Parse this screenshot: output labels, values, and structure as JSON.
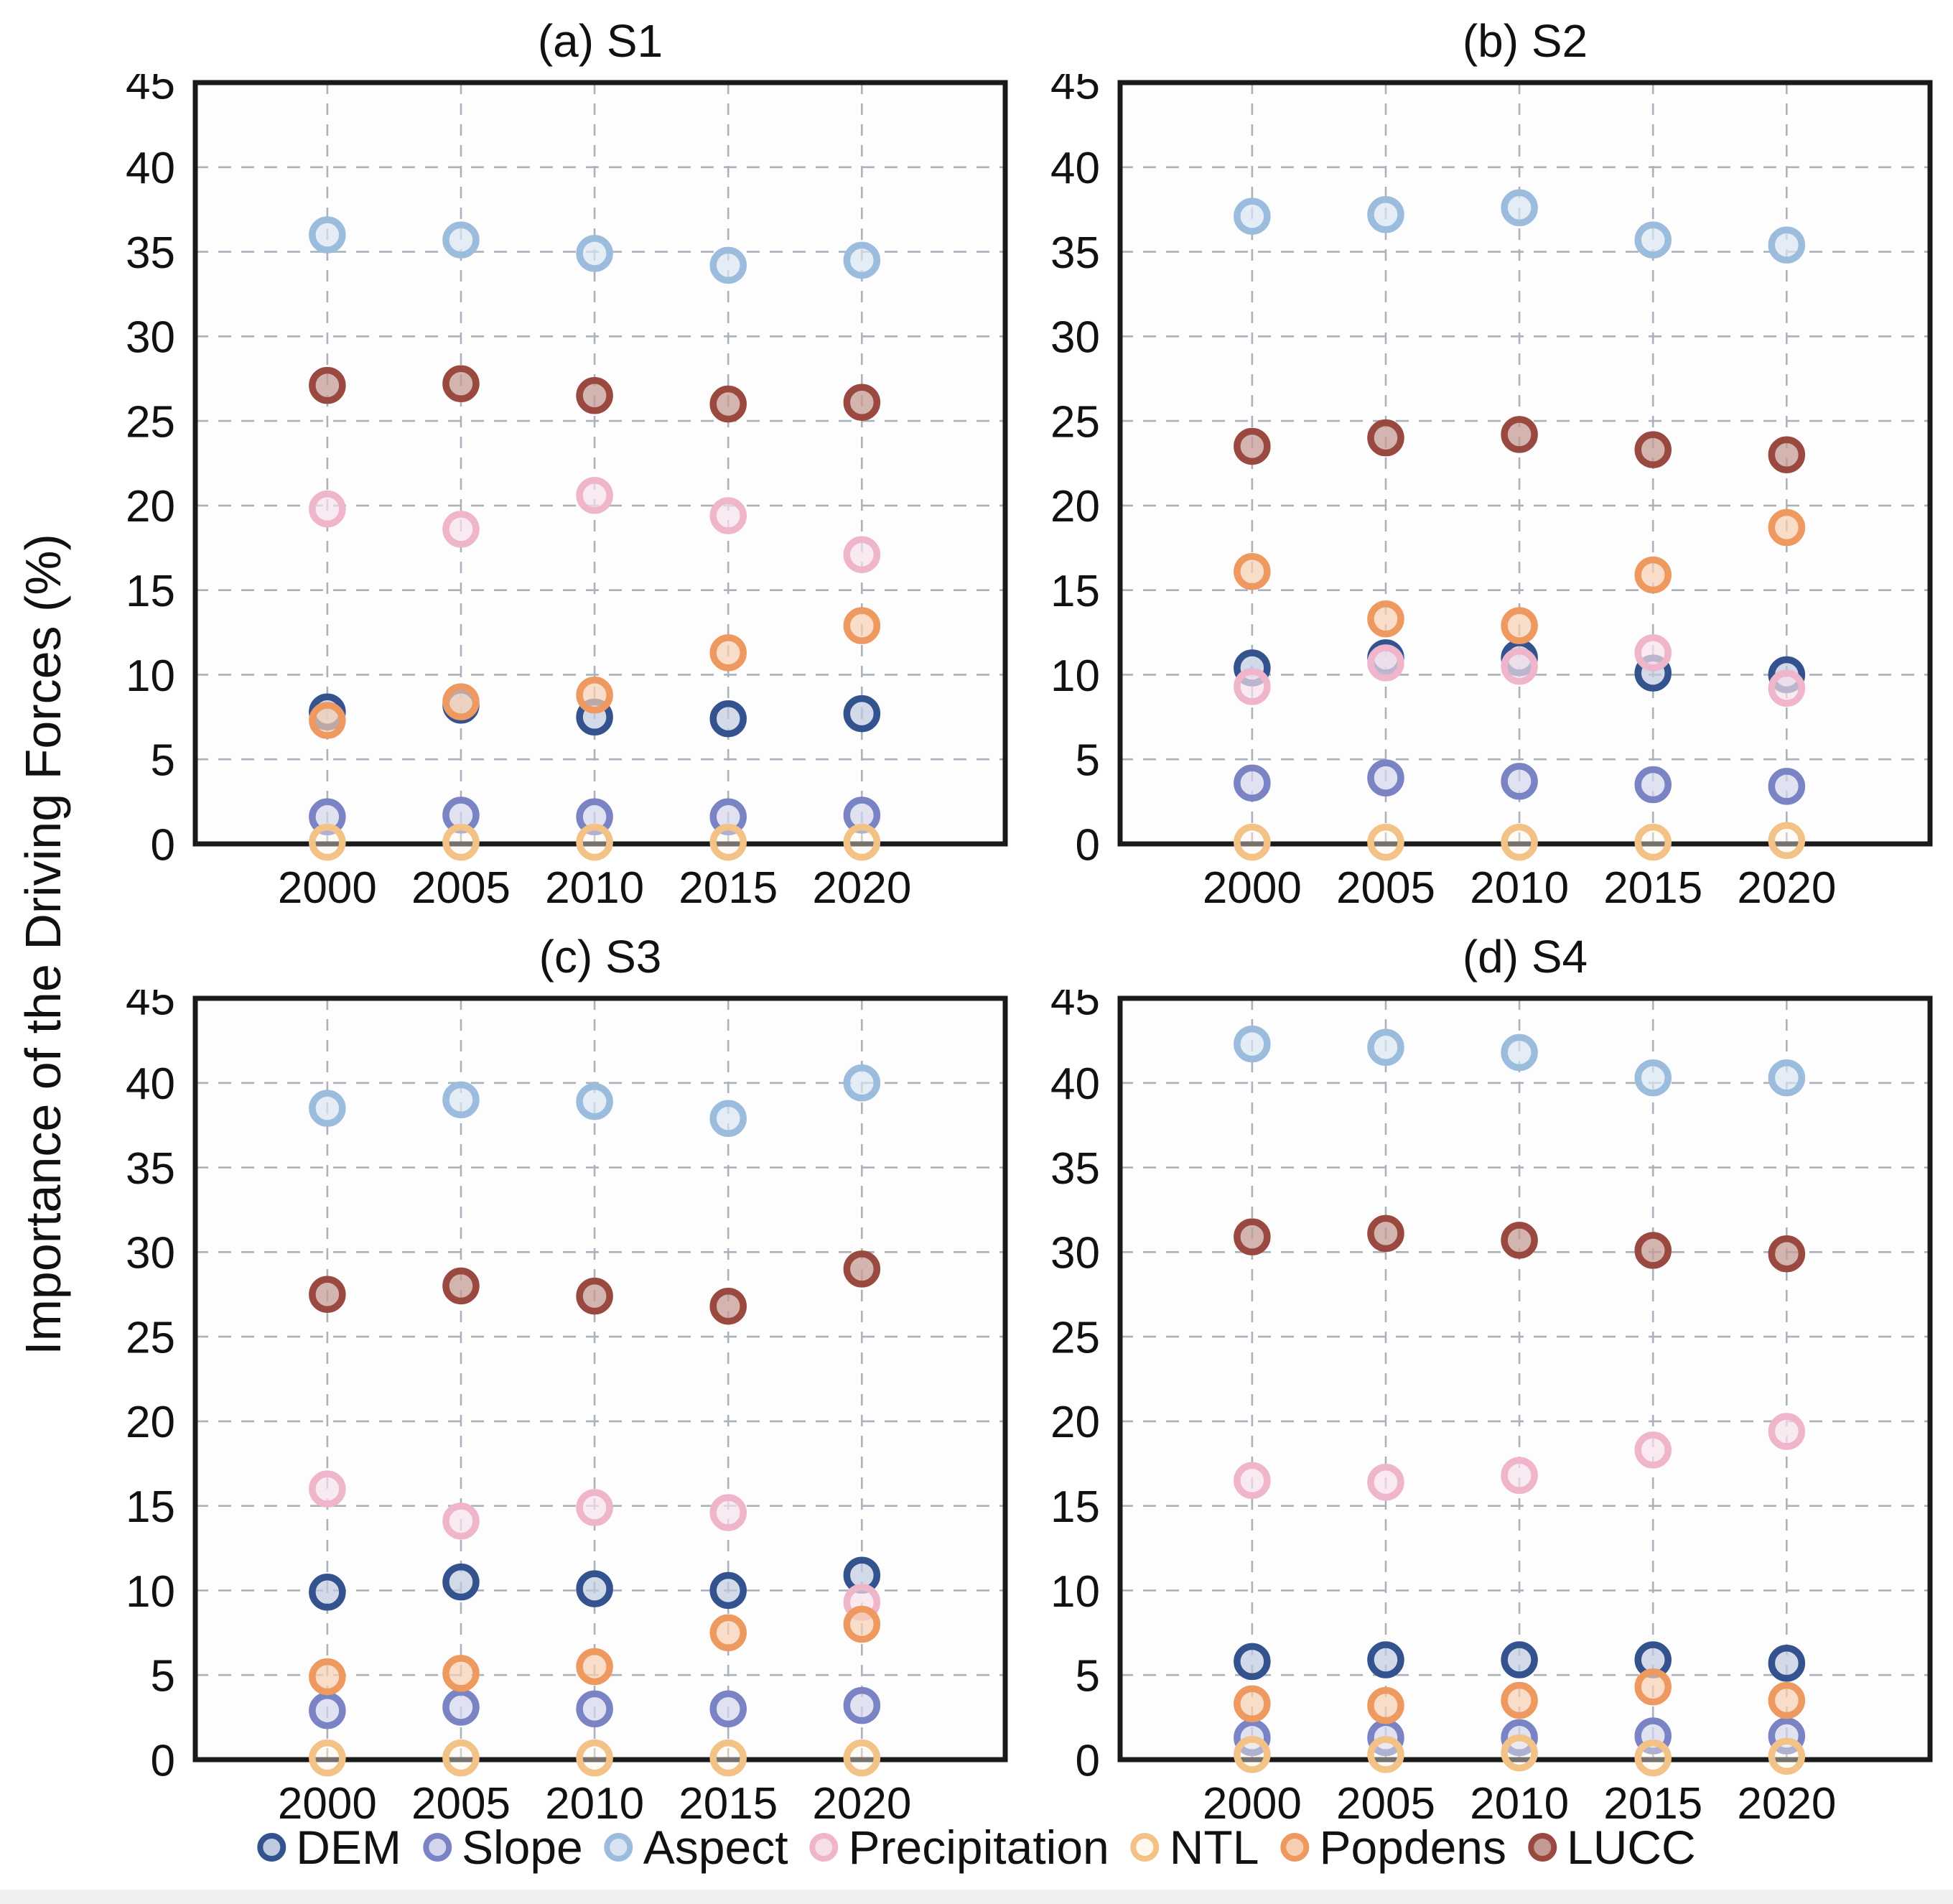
{
  "figure": {
    "y_axis_label": "Importance of the Driving Forces (%)"
  },
  "legend": [
    {
      "label": "DEM",
      "stroke": "#34538E",
      "fill": "#BFCBDF",
      "fill_opacity": 0.7
    },
    {
      "label": "Slope",
      "stroke": "#7A83C3",
      "fill": "#D3D6EC",
      "fill_opacity": 0.7
    },
    {
      "label": "Aspect",
      "stroke": "#9CBCDE",
      "fill": "#D8E4F1",
      "fill_opacity": 0.7
    },
    {
      "label": "Precipitation",
      "stroke": "#EFB5CA",
      "fill": "#F7DFE9",
      "fill_opacity": 0.7
    },
    {
      "label": "NTL",
      "stroke": "#F2C287",
      "fill": "#FFF8EC",
      "fill_opacity": 0.4
    },
    {
      "label": "Popdens",
      "stroke": "#EE9960",
      "fill": "#F6CFB2",
      "fill_opacity": 0.7
    },
    {
      "label": "LUCC",
      "stroke": "#99493F",
      "fill": "#C49B94",
      "fill_opacity": 0.75
    }
  ],
  "chart_data": [
    {
      "type": "scatter",
      "title": "(a) S1",
      "categories": [
        "2000",
        "2005",
        "2010",
        "2015",
        "2020"
      ],
      "xlabel": "",
      "ylabel": "Importance of the Driving Forces (%)",
      "ylim": [
        0,
        45
      ],
      "ytick_step": 5,
      "grid": true,
      "series": [
        {
          "name": "DEM",
          "values": [
            7.8,
            8.2,
            7.5,
            7.4,
            7.7
          ]
        },
        {
          "name": "Slope",
          "values": [
            1.6,
            1.7,
            1.6,
            1.6,
            1.7
          ]
        },
        {
          "name": "Aspect",
          "values": [
            36.0,
            35.7,
            34.9,
            34.2,
            34.5
          ]
        },
        {
          "name": "Precipitation",
          "values": [
            19.8,
            18.6,
            20.6,
            19.4,
            17.1
          ]
        },
        {
          "name": "NTL",
          "values": [
            0.1,
            0.1,
            0.1,
            0.1,
            0.1
          ]
        },
        {
          "name": "Popdens",
          "values": [
            7.3,
            8.4,
            8.8,
            11.3,
            12.9
          ]
        },
        {
          "name": "LUCC",
          "values": [
            27.1,
            27.2,
            26.5,
            26.0,
            26.1
          ]
        }
      ]
    },
    {
      "type": "scatter",
      "title": "(b) S2",
      "categories": [
        "2000",
        "2005",
        "2010",
        "2015",
        "2020"
      ],
      "xlabel": "",
      "ylabel": "Importance of the Driving Forces (%)",
      "ylim": [
        0,
        45
      ],
      "ytick_step": 5,
      "grid": true,
      "series": [
        {
          "name": "DEM",
          "values": [
            10.4,
            11.0,
            11.0,
            10.1,
            10.0
          ]
        },
        {
          "name": "Slope",
          "values": [
            3.6,
            3.9,
            3.7,
            3.5,
            3.4
          ]
        },
        {
          "name": "Aspect",
          "values": [
            37.1,
            37.2,
            37.6,
            35.7,
            35.4
          ]
        },
        {
          "name": "Precipitation",
          "values": [
            9.3,
            10.7,
            10.5,
            11.3,
            9.2
          ]
        },
        {
          "name": "NTL",
          "values": [
            0.1,
            0.1,
            0.1,
            0.1,
            0.2
          ]
        },
        {
          "name": "Popdens",
          "values": [
            16.1,
            13.3,
            12.9,
            15.9,
            18.7
          ]
        },
        {
          "name": "LUCC",
          "values": [
            23.5,
            24.0,
            24.2,
            23.3,
            23.0
          ]
        }
      ]
    },
    {
      "type": "scatter",
      "title": "(c) S3",
      "categories": [
        "2000",
        "2005",
        "2010",
        "2015",
        "2020"
      ],
      "xlabel": "",
      "ylabel": "Importance of the Driving Forces (%)",
      "ylim": [
        0,
        45
      ],
      "ytick_step": 5,
      "grid": true,
      "series": [
        {
          "name": "DEM",
          "values": [
            9.9,
            10.5,
            10.1,
            10.0,
            10.9
          ]
        },
        {
          "name": "Slope",
          "values": [
            2.9,
            3.1,
            3.0,
            3.0,
            3.2
          ]
        },
        {
          "name": "Aspect",
          "values": [
            38.5,
            39.0,
            38.9,
            37.9,
            40.0
          ]
        },
        {
          "name": "Precipitation",
          "values": [
            16.0,
            14.1,
            14.9,
            14.6,
            9.3
          ]
        },
        {
          "name": "NTL",
          "values": [
            0.1,
            0.1,
            0.1,
            0.1,
            0.1
          ]
        },
        {
          "name": "Popdens",
          "values": [
            4.9,
            5.1,
            5.5,
            7.5,
            8.0
          ]
        },
        {
          "name": "LUCC",
          "values": [
            27.5,
            28.0,
            27.4,
            26.8,
            29.0
          ]
        }
      ]
    },
    {
      "type": "scatter",
      "title": "(d) S4",
      "categories": [
        "2000",
        "2005",
        "2010",
        "2015",
        "2020"
      ],
      "xlabel": "",
      "ylabel": "Importance of the Driving Forces (%)",
      "ylim": [
        0,
        45
      ],
      "ytick_step": 5,
      "grid": true,
      "series": [
        {
          "name": "DEM",
          "values": [
            5.8,
            5.9,
            5.9,
            5.9,
            5.7
          ]
        },
        {
          "name": "Slope",
          "values": [
            1.3,
            1.3,
            1.3,
            1.4,
            1.4
          ]
        },
        {
          "name": "Aspect",
          "values": [
            42.3,
            42.1,
            41.8,
            40.3,
            40.3
          ]
        },
        {
          "name": "Precipitation",
          "values": [
            16.5,
            16.4,
            16.8,
            18.3,
            19.4
          ]
        },
        {
          "name": "NTL",
          "values": [
            0.3,
            0.3,
            0.4,
            0.1,
            0.2
          ]
        },
        {
          "name": "Popdens",
          "values": [
            3.3,
            3.2,
            3.5,
            4.3,
            3.5
          ]
        },
        {
          "name": "LUCC",
          "values": [
            30.9,
            31.1,
            30.7,
            30.1,
            29.9
          ]
        }
      ]
    }
  ]
}
